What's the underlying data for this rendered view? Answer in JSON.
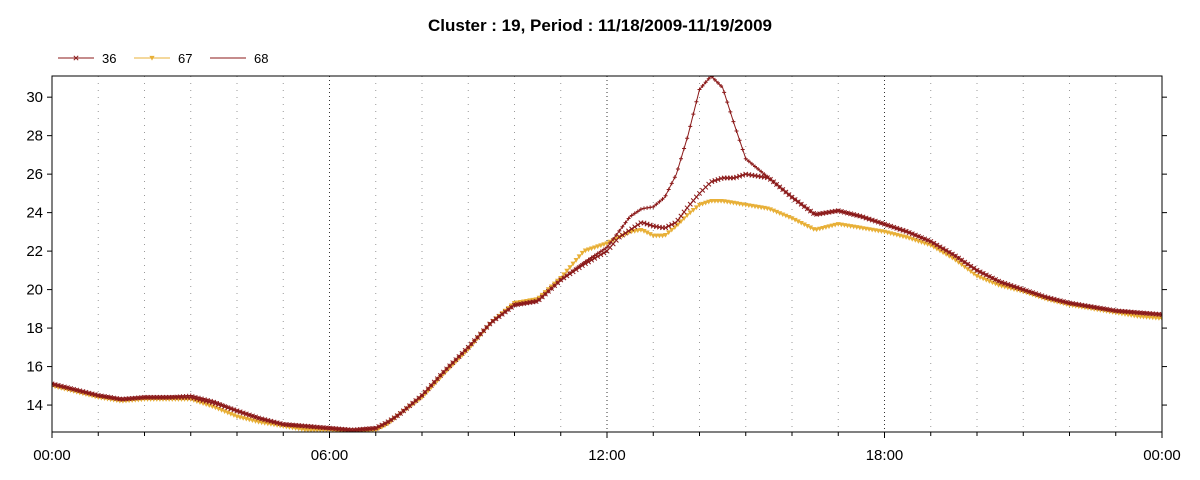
{
  "chart_data": {
    "type": "line",
    "title": "Cluster : 19, Period : 11/18/2009-11/19/2009",
    "xlabel": "",
    "ylabel": "",
    "x_unit": "hours since 11/18/2009 00:00",
    "xlim": [
      0,
      24
    ],
    "ylim": [
      12.6,
      31.1
    ],
    "x_ticks": [
      0,
      6,
      12,
      18,
      24
    ],
    "x_tick_labels": [
      "00:00",
      "06:00",
      "12:00",
      "18:00",
      "00:00"
    ],
    "y_ticks": [
      14,
      16,
      18,
      20,
      22,
      24,
      26,
      28,
      30
    ],
    "y_tick_labels": [
      "14",
      "16",
      "18",
      "20",
      "22",
      "24",
      "26",
      "28",
      "30"
    ],
    "grid": {
      "vertical": true,
      "horizontal": false
    },
    "legend_position": "top-left",
    "series": [
      {
        "name": "36",
        "color": "#8b1a1a",
        "marker": "x",
        "x": [
          0,
          0.5,
          1,
          1.5,
          2,
          2.5,
          3,
          3.5,
          4,
          4.5,
          5,
          5.5,
          6,
          6.5,
          7,
          7.25,
          7.5,
          8,
          8.5,
          9,
          9.5,
          10,
          10.5,
          11,
          11.5,
          12,
          12.25,
          12.5,
          12.75,
          13,
          13.25,
          13.5,
          13.75,
          14,
          14.25,
          14.5,
          14.75,
          15,
          15.5,
          16,
          16.5,
          17,
          17.5,
          18,
          18.5,
          19,
          19.5,
          20,
          20.5,
          21,
          21.5,
          22,
          22.5,
          23,
          23.5,
          24
        ],
        "y": [
          15.1,
          14.8,
          14.5,
          14.3,
          14.4,
          14.4,
          14.4,
          14.1,
          13.7,
          13.3,
          13.0,
          12.9,
          12.8,
          12.7,
          12.8,
          13.1,
          13.5,
          14.5,
          15.8,
          17.0,
          18.3,
          19.2,
          19.4,
          20.5,
          21.3,
          22.0,
          22.7,
          23.1,
          23.5,
          23.3,
          23.2,
          23.5,
          24.3,
          25.0,
          25.6,
          25.8,
          25.8,
          26.0,
          25.8,
          24.8,
          23.9,
          24.1,
          23.8,
          23.4,
          23.0,
          22.5,
          21.8,
          21.0,
          20.4,
          20.0,
          19.6,
          19.3,
          19.1,
          18.9,
          18.8,
          18.7
        ]
      },
      {
        "name": "67",
        "color": "#e8b038",
        "marker": "triangle-down",
        "x": [
          0,
          0.5,
          1,
          1.5,
          2,
          2.5,
          3,
          3.5,
          4,
          4.5,
          5,
          5.5,
          6,
          6.5,
          7,
          7.25,
          7.5,
          8,
          8.5,
          9,
          9.5,
          10,
          10.5,
          11,
          11.5,
          12,
          12.25,
          12.5,
          12.75,
          13,
          13.25,
          13.5,
          13.75,
          14,
          14.25,
          14.5,
          14.75,
          15,
          15.5,
          16,
          16.5,
          17,
          17.5,
          18,
          18.5,
          19,
          19.5,
          20,
          20.5,
          21,
          21.5,
          22,
          22.5,
          23,
          23.5,
          24
        ],
        "y": [
          15.0,
          14.7,
          14.4,
          14.2,
          14.3,
          14.3,
          14.3,
          13.9,
          13.4,
          13.1,
          12.9,
          12.7,
          12.7,
          12.6,
          12.7,
          13.0,
          13.5,
          14.4,
          15.7,
          16.9,
          18.3,
          19.3,
          19.5,
          20.6,
          22.0,
          22.4,
          22.7,
          23.0,
          23.1,
          22.8,
          22.8,
          23.3,
          23.9,
          24.4,
          24.6,
          24.6,
          24.5,
          24.4,
          24.2,
          23.7,
          23.1,
          23.4,
          23.2,
          23.0,
          22.7,
          22.3,
          21.6,
          20.7,
          20.2,
          19.9,
          19.5,
          19.2,
          19.0,
          18.8,
          18.6,
          18.5
        ]
      },
      {
        "name": "68",
        "color": "#8b1a1a",
        "marker": "plus",
        "x": [
          0,
          0.5,
          1,
          1.5,
          2,
          2.5,
          3,
          3.5,
          4,
          4.5,
          5,
          5.5,
          6,
          6.5,
          7,
          7.25,
          7.5,
          8,
          8.5,
          9,
          9.5,
          10,
          10.5,
          11,
          11.5,
          12,
          12.25,
          12.5,
          12.75,
          13,
          13.25,
          13.5,
          13.75,
          14,
          14.25,
          14.5,
          14.75,
          15,
          15.5,
          16,
          16.5,
          17,
          17.5,
          18,
          18.5,
          19,
          19.5,
          20,
          20.5,
          21,
          21.5,
          22,
          22.5,
          23,
          23.5,
          24
        ],
        "y": [
          15.1,
          14.8,
          14.5,
          14.3,
          14.4,
          14.4,
          14.5,
          14.2,
          13.7,
          13.3,
          13.0,
          12.9,
          12.8,
          12.7,
          12.8,
          13.1,
          13.5,
          14.5,
          15.8,
          17.0,
          18.3,
          19.2,
          19.4,
          20.5,
          21.4,
          22.2,
          23.0,
          23.8,
          24.2,
          24.3,
          24.8,
          26.0,
          28.0,
          30.4,
          31.1,
          30.5,
          28.6,
          26.8,
          25.8,
          24.8,
          23.9,
          24.1,
          23.8,
          23.4,
          23.0,
          22.5,
          21.8,
          21.0,
          20.4,
          20.0,
          19.6,
          19.3,
          19.1,
          18.9,
          18.8,
          18.7
        ]
      }
    ]
  }
}
